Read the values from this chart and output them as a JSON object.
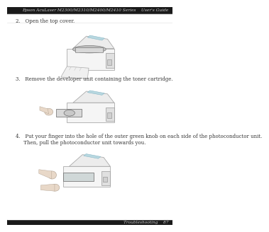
{
  "bg_color": "#ffffff",
  "header_bg": "#1a1a1a",
  "header_text": "Epson AcuLaser M2300/M2310/M2400/M2410 Series    User's Guide",
  "header_text_color": "#cccccc",
  "header_fontsize": 4.2,
  "footer_bg": "#1a1a1a",
  "footer_text": "Troubleshooting    87",
  "footer_text_color": "#cccccc",
  "footer_fontsize": 4.2,
  "step2_text": "2.   Open the top cover.",
  "step3_text": "3.   Remove the developer unit containing the toner cartridge.",
  "step4_text": "4.   Put your finger into the hole of the outer green knob on each side of the photoconductor unit.\n     Then, pull the photoconductor unit towards you.",
  "text_fontsize": 5.0,
  "text_color": "#333333",
  "line_color": "#aaaaaa",
  "sep_line_color": "#dddddd"
}
